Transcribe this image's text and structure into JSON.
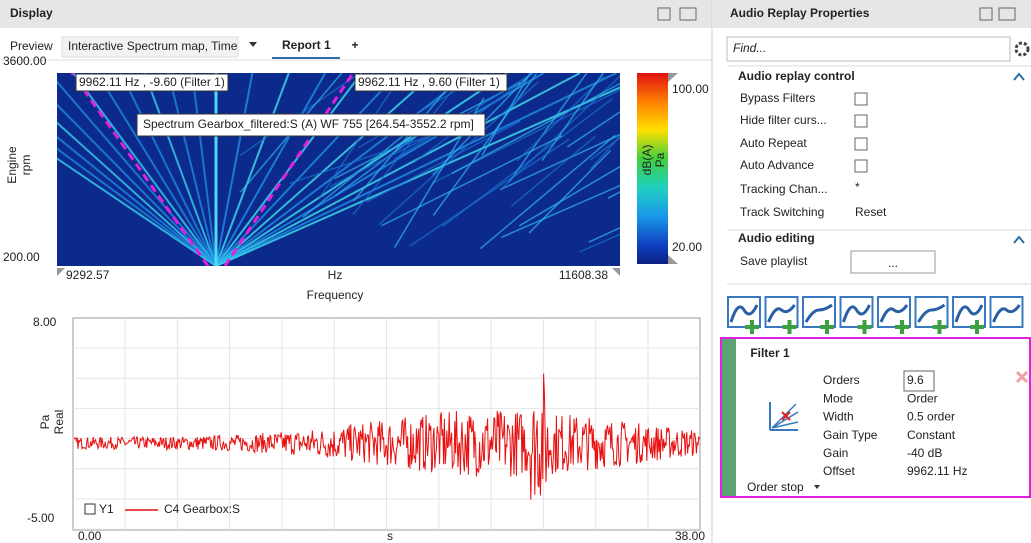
{
  "display": {
    "title": "Display",
    "preview_label": "Preview",
    "preview_select": "Interactive Spectrum map, Time",
    "tab": "Report 1",
    "add_tab": "+"
  },
  "spectrum_map": {
    "y_axis_title": [
      "Engine",
      "rpm"
    ],
    "y_ticks": [
      "3600.00",
      "200.00"
    ],
    "x_ticks": [
      "9292.57",
      "Hz",
      "11608.38"
    ],
    "x_axis_title": "Frequency",
    "cursor_labels": [
      "9962.11 Hz , -9.60 (Filter 1)",
      "9962.11 Hz , 9.60 (Filter 1)"
    ],
    "tooltip": "Spectrum Gearbox_filtered:S (A) WF 755 [264.54-3552.2 rpm]",
    "colorbar": {
      "ticks": [
        "100.00",
        "20.00"
      ],
      "title": [
        "dB(A)",
        "Pa"
      ]
    }
  },
  "time_plot": {
    "y_axis_title": [
      "Pa",
      "Real"
    ],
    "y_ticks": [
      "8.00",
      "-5.00"
    ],
    "x_ticks": [
      "0.00",
      "s",
      "38.00"
    ],
    "legend": [
      "Y1",
      "C4 Gearbox:S"
    ]
  },
  "properties": {
    "title": "Audio Replay Properties",
    "find_placeholder": "Find...",
    "sections": [
      {
        "title": "Audio replay control",
        "rows": [
          {
            "label": "Bypass Filters"
          },
          {
            "label": "Hide filter curs..."
          },
          {
            "label": "Auto Repeat"
          },
          {
            "label": "Auto Advance"
          },
          {
            "label": "Tracking Chan...",
            "value": "*"
          },
          {
            "label": "Track Switching",
            "value": "Reset"
          }
        ]
      },
      {
        "title": "Audio editing",
        "rows": [
          {
            "label": "Save playlist",
            "value": "..."
          }
        ]
      }
    ],
    "filter": {
      "name": "Filter 1",
      "type": "Order stop",
      "fields": [
        {
          "label": "Orders",
          "value": "9.6"
        },
        {
          "label": "Mode",
          "value": "Order"
        },
        {
          "label": "Width",
          "value": "0.5  order"
        },
        {
          "label": "Gain Type",
          "value": "Constant"
        },
        {
          "label": "Gain",
          "value": "-40  dB"
        },
        {
          "label": "Offset",
          "value": "9962.11 Hz"
        }
      ]
    }
  }
}
